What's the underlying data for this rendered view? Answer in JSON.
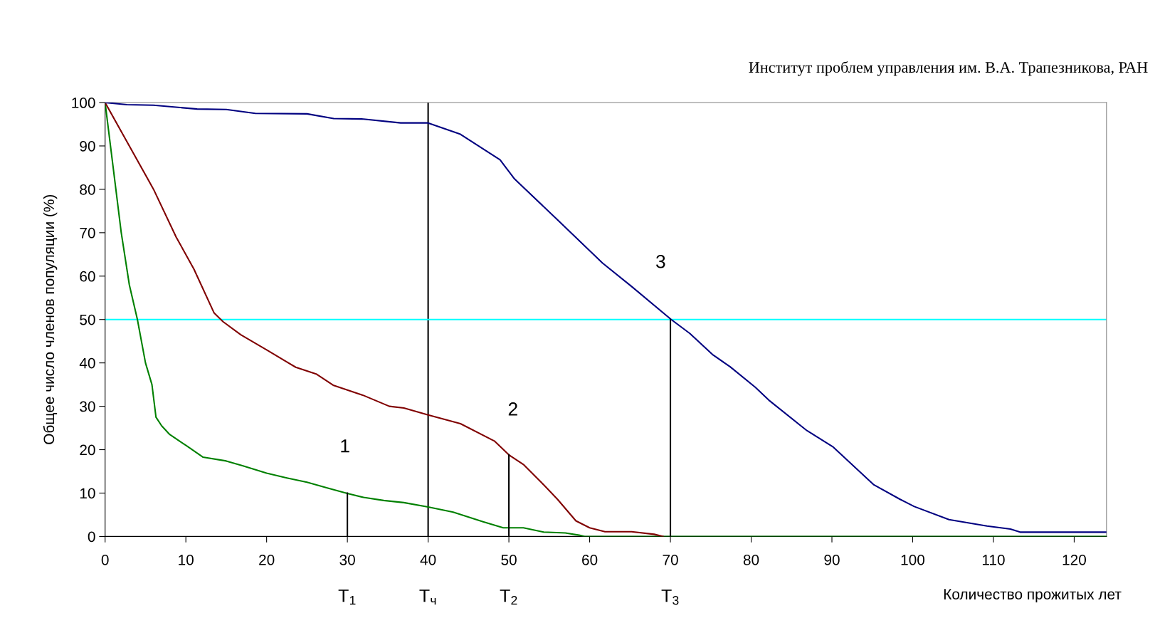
{
  "chart_data": {
    "type": "line",
    "xlabel": "Количество прожитых лет",
    "ylabel": "Общее число членов популяции (%)",
    "xlim": [
      0,
      124
    ],
    "ylim": [
      0,
      100
    ],
    "xticks": [
      0,
      10,
      20,
      30,
      40,
      50,
      60,
      70,
      80,
      90,
      100,
      110,
      120
    ],
    "yticks": [
      0,
      10,
      20,
      30,
      40,
      50,
      60,
      70,
      80,
      90,
      100
    ],
    "grid": false,
    "legend": false,
    "marker": "none",
    "line_style": "solid",
    "series": [
      {
        "color": "#008000",
        "x": [
          0,
          1,
          2,
          3,
          4,
          5,
          5.8,
          6.3,
          7,
          8,
          9.2,
          10,
          12.1,
          15,
          17,
          20,
          22.5,
          25,
          27.5,
          30,
          32,
          34.5,
          37,
          40,
          43.1,
          46.8,
          49.3,
          51.8,
          54.3,
          57,
          58.7,
          59.4,
          124
        ],
        "values": [
          100,
          85,
          70,
          58,
          50,
          40,
          35,
          27.5,
          25.5,
          23.5,
          22,
          21,
          18.3,
          17.4,
          16.3,
          14.6,
          13.5,
          12.5,
          11.2,
          9.9,
          9,
          8.3,
          7.8,
          6.8,
          5.6,
          3.4,
          2,
          2,
          1,
          0.8,
          0.3,
          0,
          0
        ]
      },
      {
        "color": "#800000",
        "x": [
          0,
          3,
          6,
          8.8,
          11,
          13.5,
          14.6,
          16.8,
          20,
          23.6,
          26.2,
          28.3,
          32,
          35.2,
          37,
          40,
          44,
          48.2,
          50,
          51.8,
          54,
          56,
          58.3,
          60,
          61.9,
          65.2,
          68,
          69.1
        ],
        "values": [
          100,
          90,
          80,
          69,
          61.6,
          51.5,
          49.5,
          46.5,
          43,
          39,
          37.4,
          34.8,
          32.5,
          30,
          29.6,
          28,
          26,
          22,
          18.8,
          16.6,
          12.5,
          8.6,
          3.6,
          2,
          1.1,
          1.1,
          0.5,
          0
        ]
      },
      {
        "color": "#000080",
        "x": [
          0,
          2.7,
          6,
          11.4,
          15,
          18.6,
          25,
          28.3,
          32,
          36.6,
          40,
          44,
          48.9,
          50.7,
          56,
          61.6,
          65.2,
          70.1,
          72.4,
          75.3,
          77.4,
          80.5,
          82.2,
          86.9,
          90.1,
          95.2,
          98.4,
          100.2,
          104.5,
          109.2,
          112.1,
          113.3,
          124
        ],
        "values": [
          100,
          99.5,
          99.4,
          98.5,
          98.4,
          97.5,
          97.4,
          96.3,
          96.2,
          95.3,
          95.3,
          92.7,
          86.8,
          82.4,
          73,
          63,
          57.6,
          50,
          46.8,
          41.8,
          39.1,
          34.4,
          31.4,
          24.4,
          20.7,
          11.9,
          8.6,
          6.9,
          3.9,
          2.4,
          1.7,
          1,
          1
        ]
      },
      {
        "color": "#000000",
        "x": [
          30,
          30
        ],
        "values": [
          0,
          10
        ]
      },
      {
        "color": "#000000",
        "x": [
          50,
          50
        ],
        "values": [
          0,
          18.8
        ]
      },
      {
        "color": "#000000",
        "x": [
          70,
          70
        ],
        "values": [
          0,
          50
        ]
      }
    ],
    "ref_lines": [
      {
        "axis": "x",
        "value": 40,
        "color": "#000000"
      },
      {
        "axis": "y",
        "value": 50,
        "color": "#00ffff"
      }
    ],
    "annotations": [
      "Институт проблем управления им. В.А. Трапезникова, РАН",
      "1",
      "2",
      "3",
      "T$_{1}$",
      "T$_{ч}$",
      "T$_{2}$",
      "T$_{3}$"
    ]
  }
}
